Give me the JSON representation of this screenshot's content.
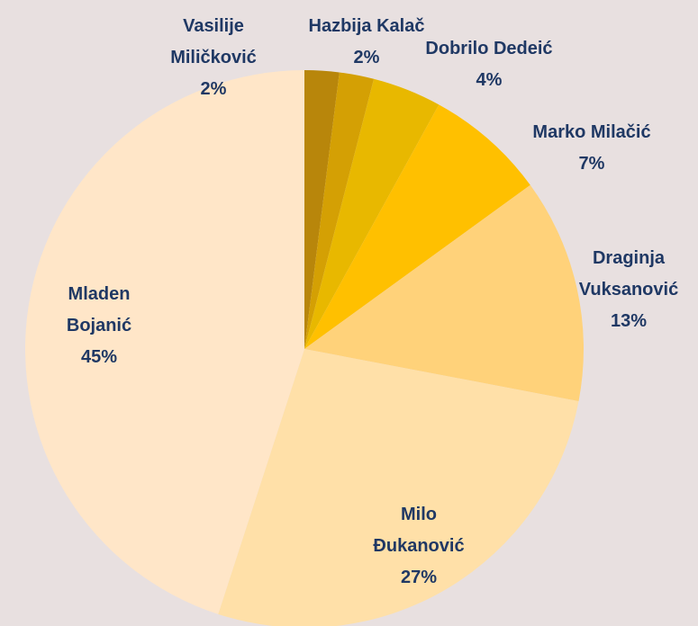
{
  "chart_data": {
    "type": "pie",
    "categories": [
      "Vasilije Miličković",
      "Hazbija Kalač",
      "Dobrilo Dedeić",
      "Marko Milačić",
      "Draginja Vuksanović",
      "Milo Đukanović",
      "Mladen Bojanić"
    ],
    "values": [
      2,
      2,
      4,
      7,
      13,
      27,
      45
    ],
    "value_labels": [
      "2%",
      "2%",
      "4%",
      "7%",
      "13%",
      "27%",
      "45%"
    ],
    "colors": [
      "#b8860b",
      "#d4a004",
      "#e8b800",
      "#ffc000",
      "#ffd27a",
      "#ffe0a8",
      "#ffe6c8"
    ]
  }
}
